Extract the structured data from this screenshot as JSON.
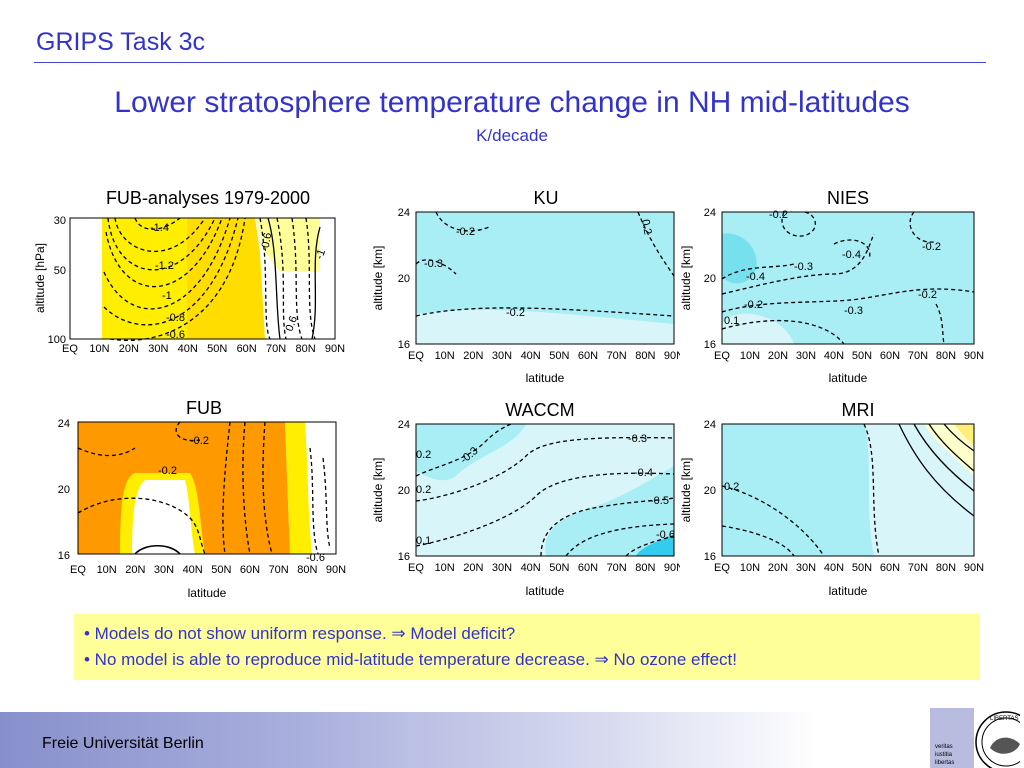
{
  "header": {
    "title": "GRIPS Task 3c"
  },
  "slide": {
    "title": "Lower stratosphere temperature change in NH mid-latitudes",
    "subtitle": "K/decade"
  },
  "axes": {
    "xticks": [
      "EQ",
      "10N",
      "20N",
      "30N",
      "40N",
      "50N",
      "60N",
      "70N",
      "80N",
      "90N"
    ],
    "xlabel": "latitude",
    "ylabel_km": "altitude [km]",
    "ylabel_hpa": "altitude [hPa]",
    "yticks_km": [
      "24",
      "20",
      "16"
    ],
    "yticks_hpa": [
      "30",
      "50",
      "100"
    ]
  },
  "panels": [
    {
      "title": "FUB-analyses 1979-2000",
      "labels": [
        "-1.4",
        "-1.2",
        "-1",
        "-0.8",
        "-0.6",
        "-0.6",
        "-1",
        "0.6"
      ]
    },
    {
      "title": "KU",
      "labels": [
        "-0.2",
        "-0.3",
        "-0.2",
        "0.2"
      ]
    },
    {
      "title": "NIES",
      "labels": [
        "-0.2",
        "-0.4",
        "-0.3",
        "-0.4",
        "-0.2",
        "-0.2",
        "-0.2",
        "-0.3",
        "0.1"
      ]
    },
    {
      "title": "FUB",
      "labels": [
        "-0.2",
        "-0.2",
        "-0.6"
      ]
    },
    {
      "title": "WACCM",
      "labels": [
        "-0.3",
        "-0.3",
        "-0.4",
        "-0.5",
        "-0.6",
        "0.2",
        "0.2",
        "0.1"
      ]
    },
    {
      "title": "MRI",
      "labels": [
        "0.2"
      ]
    }
  ],
  "notes": {
    "line1": "• Models do not show uniform response. ⇒ Model deficit?",
    "line2": "• No model is able to reproduce mid-latitude temperature decrease. ⇒ No ozone effect!"
  },
  "footer": {
    "label": "Freie Universität Berlin"
  },
  "logo": {
    "text": [
      "veritas",
      "iustitia",
      "libertas"
    ],
    "banner": "LIBERTAS"
  },
  "colors": {
    "title": "#3333cc",
    "cyan": "#aaeef5",
    "cyan_light": "#d8f6fa",
    "yellow": "#ffee00",
    "orange": "#ff9900",
    "note_bg": "#ffff99"
  }
}
